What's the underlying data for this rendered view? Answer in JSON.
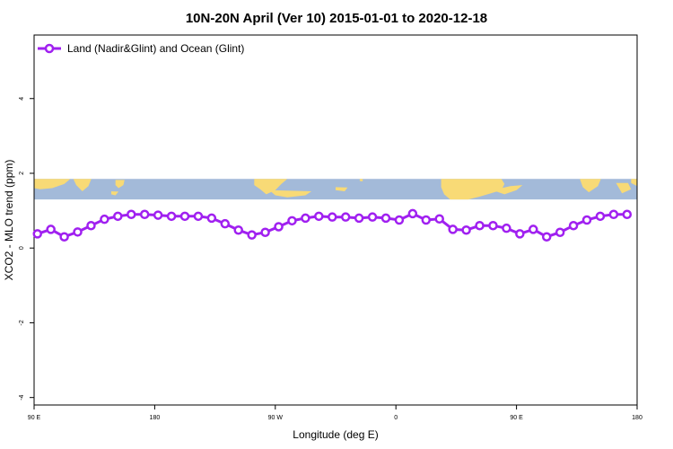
{
  "chart_data": {
    "type": "line",
    "title": "10N-20N April (Ver 10)   2015-01-01 to 2020-12-18",
    "xlabel": "Longitude (deg E)",
    "ylabel": "XCO2 - MLO trend (ppm)",
    "x_ticks": [
      {
        "pos": 90,
        "label": "90 E"
      },
      {
        "pos": 180,
        "label": "180"
      },
      {
        "pos": 270,
        "label": "90 W"
      },
      {
        "pos": 360,
        "label": "0"
      },
      {
        "pos": 450,
        "label": "90 E"
      },
      {
        "pos": 540,
        "label": "180"
      }
    ],
    "y_ticks": [
      {
        "value": -4,
        "label": "-4"
      },
      {
        "value": -2,
        "label": "-2"
      },
      {
        "value": 0,
        "label": "0"
      },
      {
        "value": 2,
        "label": "2"
      },
      {
        "value": 4,
        "label": "4"
      }
    ],
    "xlim": [
      90,
      540
    ],
    "ylim": [
      -4.2,
      5.7
    ],
    "grid": false,
    "legend_position": "top-left",
    "map_strip": {
      "ylim": [
        1.3,
        1.85
      ],
      "ocean_color": "#a3bad9",
      "land_color": "#f8da76"
    },
    "series": [
      {
        "name": "Land (Nadir&Glint) and Ocean (Glint)",
        "color": "#a020f0",
        "x": [
          92.5,
          102.5,
          112.5,
          122.5,
          132.5,
          142.5,
          152.5,
          162.5,
          172.5,
          182.5,
          192.5,
          202.5,
          212.5,
          222.5,
          232.5,
          242.5,
          252.5,
          262.5,
          272.5,
          282.5,
          292.5,
          302.5,
          312.5,
          322.5,
          332.5,
          342.5,
          352.5,
          362.5,
          372.5,
          382.5,
          392.5,
          402.5,
          412.5,
          422.5,
          432.5,
          442.5,
          452.5,
          462.5,
          472.5,
          482.5,
          492.5,
          502.5,
          512.5,
          522.5,
          532.5
        ],
        "y": [
          0.38,
          0.5,
          0.3,
          0.43,
          0.6,
          0.77,
          0.85,
          0.9,
          0.9,
          0.88,
          0.85,
          0.85,
          0.85,
          0.8,
          0.65,
          0.48,
          0.35,
          0.42,
          0.57,
          0.73,
          0.8,
          0.85,
          0.83,
          0.83,
          0.8,
          0.83,
          0.8,
          0.75,
          0.92,
          0.75,
          0.78,
          0.5,
          0.48,
          0.6,
          0.6,
          0.53,
          0.38,
          0.5,
          0.3,
          0.42,
          0.6,
          0.75,
          0.85,
          0.9,
          0.9
        ]
      }
    ]
  }
}
